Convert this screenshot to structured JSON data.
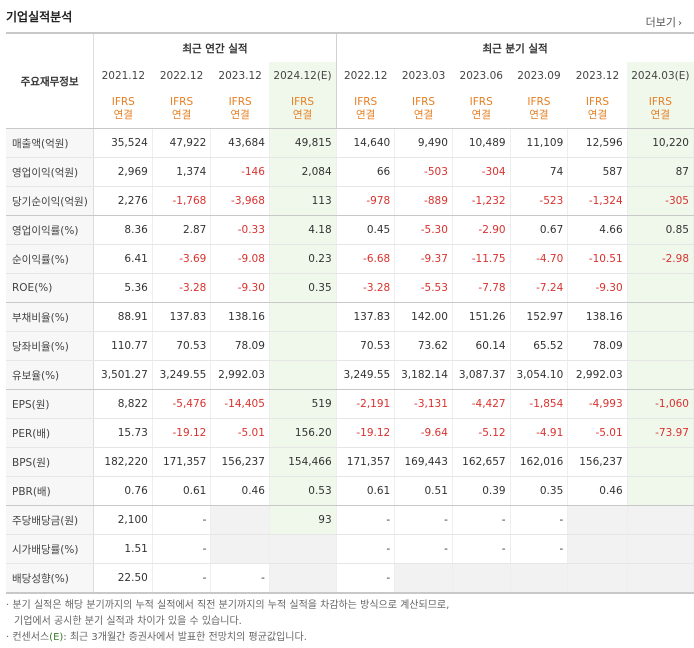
{
  "title": "기업실적분석",
  "more_label": "더보기",
  "header": {
    "label": "주요재무정보",
    "annual_title": "최근 연간 실적",
    "quarter_title": "최근 분기 실적",
    "periods": [
      "2021.12",
      "2022.12",
      "2023.12",
      "2024.12(E)",
      "2022.12",
      "2023.03",
      "2023.06",
      "2023.09",
      "2023.12",
      "2024.03(E)"
    ],
    "ifrs_top": "IFRS",
    "ifrs_bottom": "연결"
  },
  "rows": [
    {
      "label": "매출액(억원)",
      "values": [
        "35,524",
        "47,922",
        "43,684",
        "49,815",
        "14,640",
        "9,490",
        "10,489",
        "11,109",
        "12,596",
        "10,220"
      ]
    },
    {
      "label": "영업이익(억원)",
      "values": [
        "2,969",
        "1,374",
        "-146",
        "2,084",
        "66",
        "-503",
        "-304",
        "74",
        "587",
        "87"
      ]
    },
    {
      "label": "당기순이익(억원)",
      "values": [
        "2,276",
        "-1,768",
        "-3,968",
        "113",
        "-978",
        "-889",
        "-1,232",
        "-523",
        "-1,324",
        "-305"
      ]
    },
    {
      "label": "영업이익률(%)",
      "values": [
        "8.36",
        "2.87",
        "-0.33",
        "4.18",
        "0.45",
        "-5.30",
        "-2.90",
        "0.67",
        "4.66",
        "0.85"
      ]
    },
    {
      "label": "순이익률(%)",
      "values": [
        "6.41",
        "-3.69",
        "-9.08",
        "0.23",
        "-6.68",
        "-9.37",
        "-11.75",
        "-4.70",
        "-10.51",
        "-2.98"
      ]
    },
    {
      "label": "ROE(%)",
      "values": [
        "5.36",
        "-3.28",
        "-9.30",
        "0.35",
        "-3.28",
        "-5.53",
        "-7.78",
        "-7.24",
        "-9.30",
        ""
      ]
    },
    {
      "label": "부채비율(%)",
      "values": [
        "88.91",
        "137.83",
        "138.16",
        "",
        "137.83",
        "142.00",
        "151.26",
        "152.97",
        "138.16",
        ""
      ]
    },
    {
      "label": "당좌비율(%)",
      "values": [
        "110.77",
        "70.53",
        "78.09",
        "",
        "70.53",
        "73.62",
        "60.14",
        "65.52",
        "78.09",
        ""
      ]
    },
    {
      "label": "유보율(%)",
      "values": [
        "3,501.27",
        "3,249.55",
        "2,992.03",
        "",
        "3,249.55",
        "3,182.14",
        "3,087.37",
        "3,054.10",
        "2,992.03",
        ""
      ]
    },
    {
      "label": "EPS(원)",
      "values": [
        "8,822",
        "-5,476",
        "-14,405",
        "519",
        "-2,191",
        "-3,131",
        "-4,427",
        "-1,854",
        "-4,993",
        "-1,060"
      ]
    },
    {
      "label": "PER(배)",
      "values": [
        "15.73",
        "-19.12",
        "-5.01",
        "156.20",
        "-19.12",
        "-9.64",
        "-5.12",
        "-4.91",
        "-5.01",
        "-73.97"
      ]
    },
    {
      "label": "BPS(원)",
      "values": [
        "182,220",
        "171,357",
        "156,237",
        "154,466",
        "171,357",
        "169,443",
        "162,657",
        "162,016",
        "156,237",
        ""
      ]
    },
    {
      "label": "PBR(배)",
      "values": [
        "0.76",
        "0.61",
        "0.46",
        "0.53",
        "0.61",
        "0.51",
        "0.39",
        "0.35",
        "0.46",
        ""
      ]
    },
    {
      "label": "주당배당금(원)",
      "values": [
        "2,100",
        "-",
        "",
        "93",
        "-",
        "-",
        "-",
        "-",
        "",
        ""
      ]
    },
    {
      "label": "시가배당률(%)",
      "values": [
        "1.51",
        "-",
        "",
        "",
        "-",
        "-",
        "-",
        "-",
        "",
        ""
      ]
    },
    {
      "label": "배당성향(%)",
      "values": [
        "22.50",
        "-",
        "-",
        "",
        "-",
        "",
        "",
        "",
        "",
        ""
      ]
    }
  ],
  "notes": {
    "line1": "분기 실적은 해당 분기까지의 누적 실적에서 직전 분기까지의 누적 실적을 차감하는 방식으로 계산되므로,",
    "line2": "기업에서 공시한 분기 실적과 차이가 있을 수 있습니다.",
    "line3_prefix": "컨센서스",
    "line3_e": "(E)",
    "line3_suffix": ": 최근 3개월간 증권사에서 발표한 전망치의 평균값입니다."
  }
}
